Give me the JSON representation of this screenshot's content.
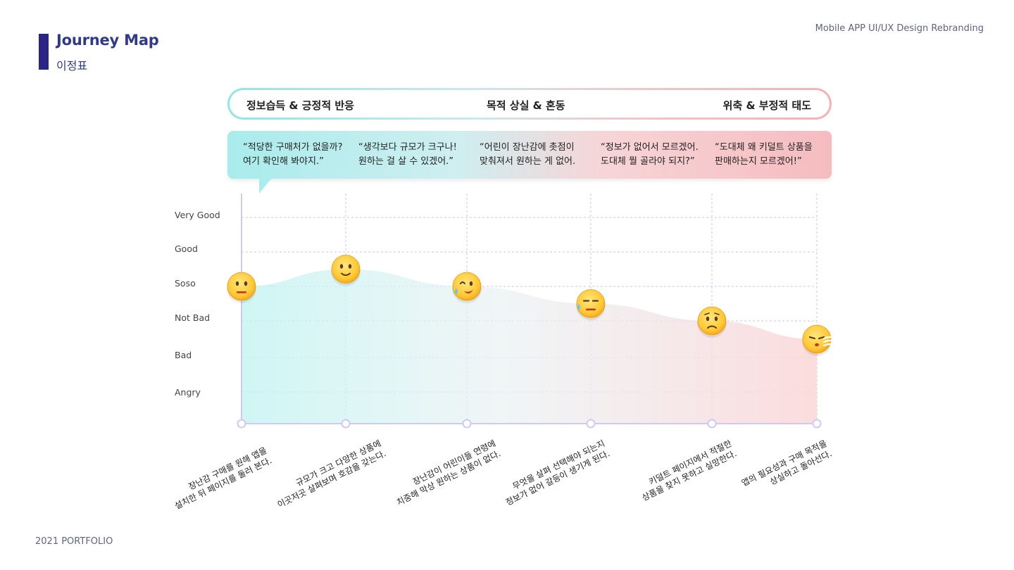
{
  "header": {
    "title": "Journey Map",
    "subtitle": "이정표",
    "project": "Mobile APP UI/UX Design Rebranding"
  },
  "footer": {
    "text": "2021 PORTFOLIO"
  },
  "phases": [
    "정보습득 & 긍정적 반응",
    "목적 상실 & 혼동",
    "위축 & 부정적 태도"
  ],
  "quotes": [
    {
      "line1": "“적당한 구매처가 없을까?",
      "line2": "여기 확인해 봐야지.”"
    },
    {
      "line1": "“생각보다 규모가 크구나!",
      "line2": "원하는 걸 살 수 있겠어.”"
    },
    {
      "line1": "“어린이 장난감에 촛점이",
      "line2": "맞춰져서 원하는 게 없어."
    },
    {
      "line1": "“정보가 없어서 모르겠어.",
      "line2": "도대체 뭘 골라야 되지?”"
    },
    {
      "line1": "“도대체 왜 키덜트 상품을",
      "line2": "판매하는지 모르겠어!”"
    }
  ],
  "chart_data": {
    "type": "line",
    "y_levels": [
      "Very Good",
      "Good",
      "Soso",
      "Not Bad",
      "Bad",
      "Angry"
    ],
    "steps": [
      {
        "line1": "장난감 구매를 원해 앱을",
        "line2": "설치한 뒤 페이지를 둘러 본다.",
        "level": 3.0,
        "emoji": "neutral-face"
      },
      {
        "line1": "규모가 크고 다양한 상품에",
        "line2": "이곳저곳 살펴보며 호감을 갖는다.",
        "level": 3.5,
        "emoji": "smiling-face"
      },
      {
        "line1": "장난감이 어린이들 연령에",
        "line2": "치중해 막상 원하는 상품이 없다.",
        "level": 3.0,
        "emoji": "sweat-smile-face"
      },
      {
        "line1": "무엇을 살펴 선택해야 되는지",
        "line2": "정보가 없어 갈등이 생기게 된다.",
        "level": 2.5,
        "emoji": "downcast-sweat-face"
      },
      {
        "line1": "키덜트 페이지에서 적절한",
        "line2": "상품을 찾지 못하고 실망한다.",
        "level": 2.0,
        "emoji": "worried-face"
      },
      {
        "line1": "앱의 필요성과 구매 목적을",
        "line2": "상실하고 돌아선다.",
        "level": 1.5,
        "emoji": "sighing-face"
      }
    ],
    "colors": {
      "start": "#9fecec",
      "end": "#f7c3c6",
      "grid": "#c9c6f0",
      "axis": "#cfc9f5"
    }
  }
}
